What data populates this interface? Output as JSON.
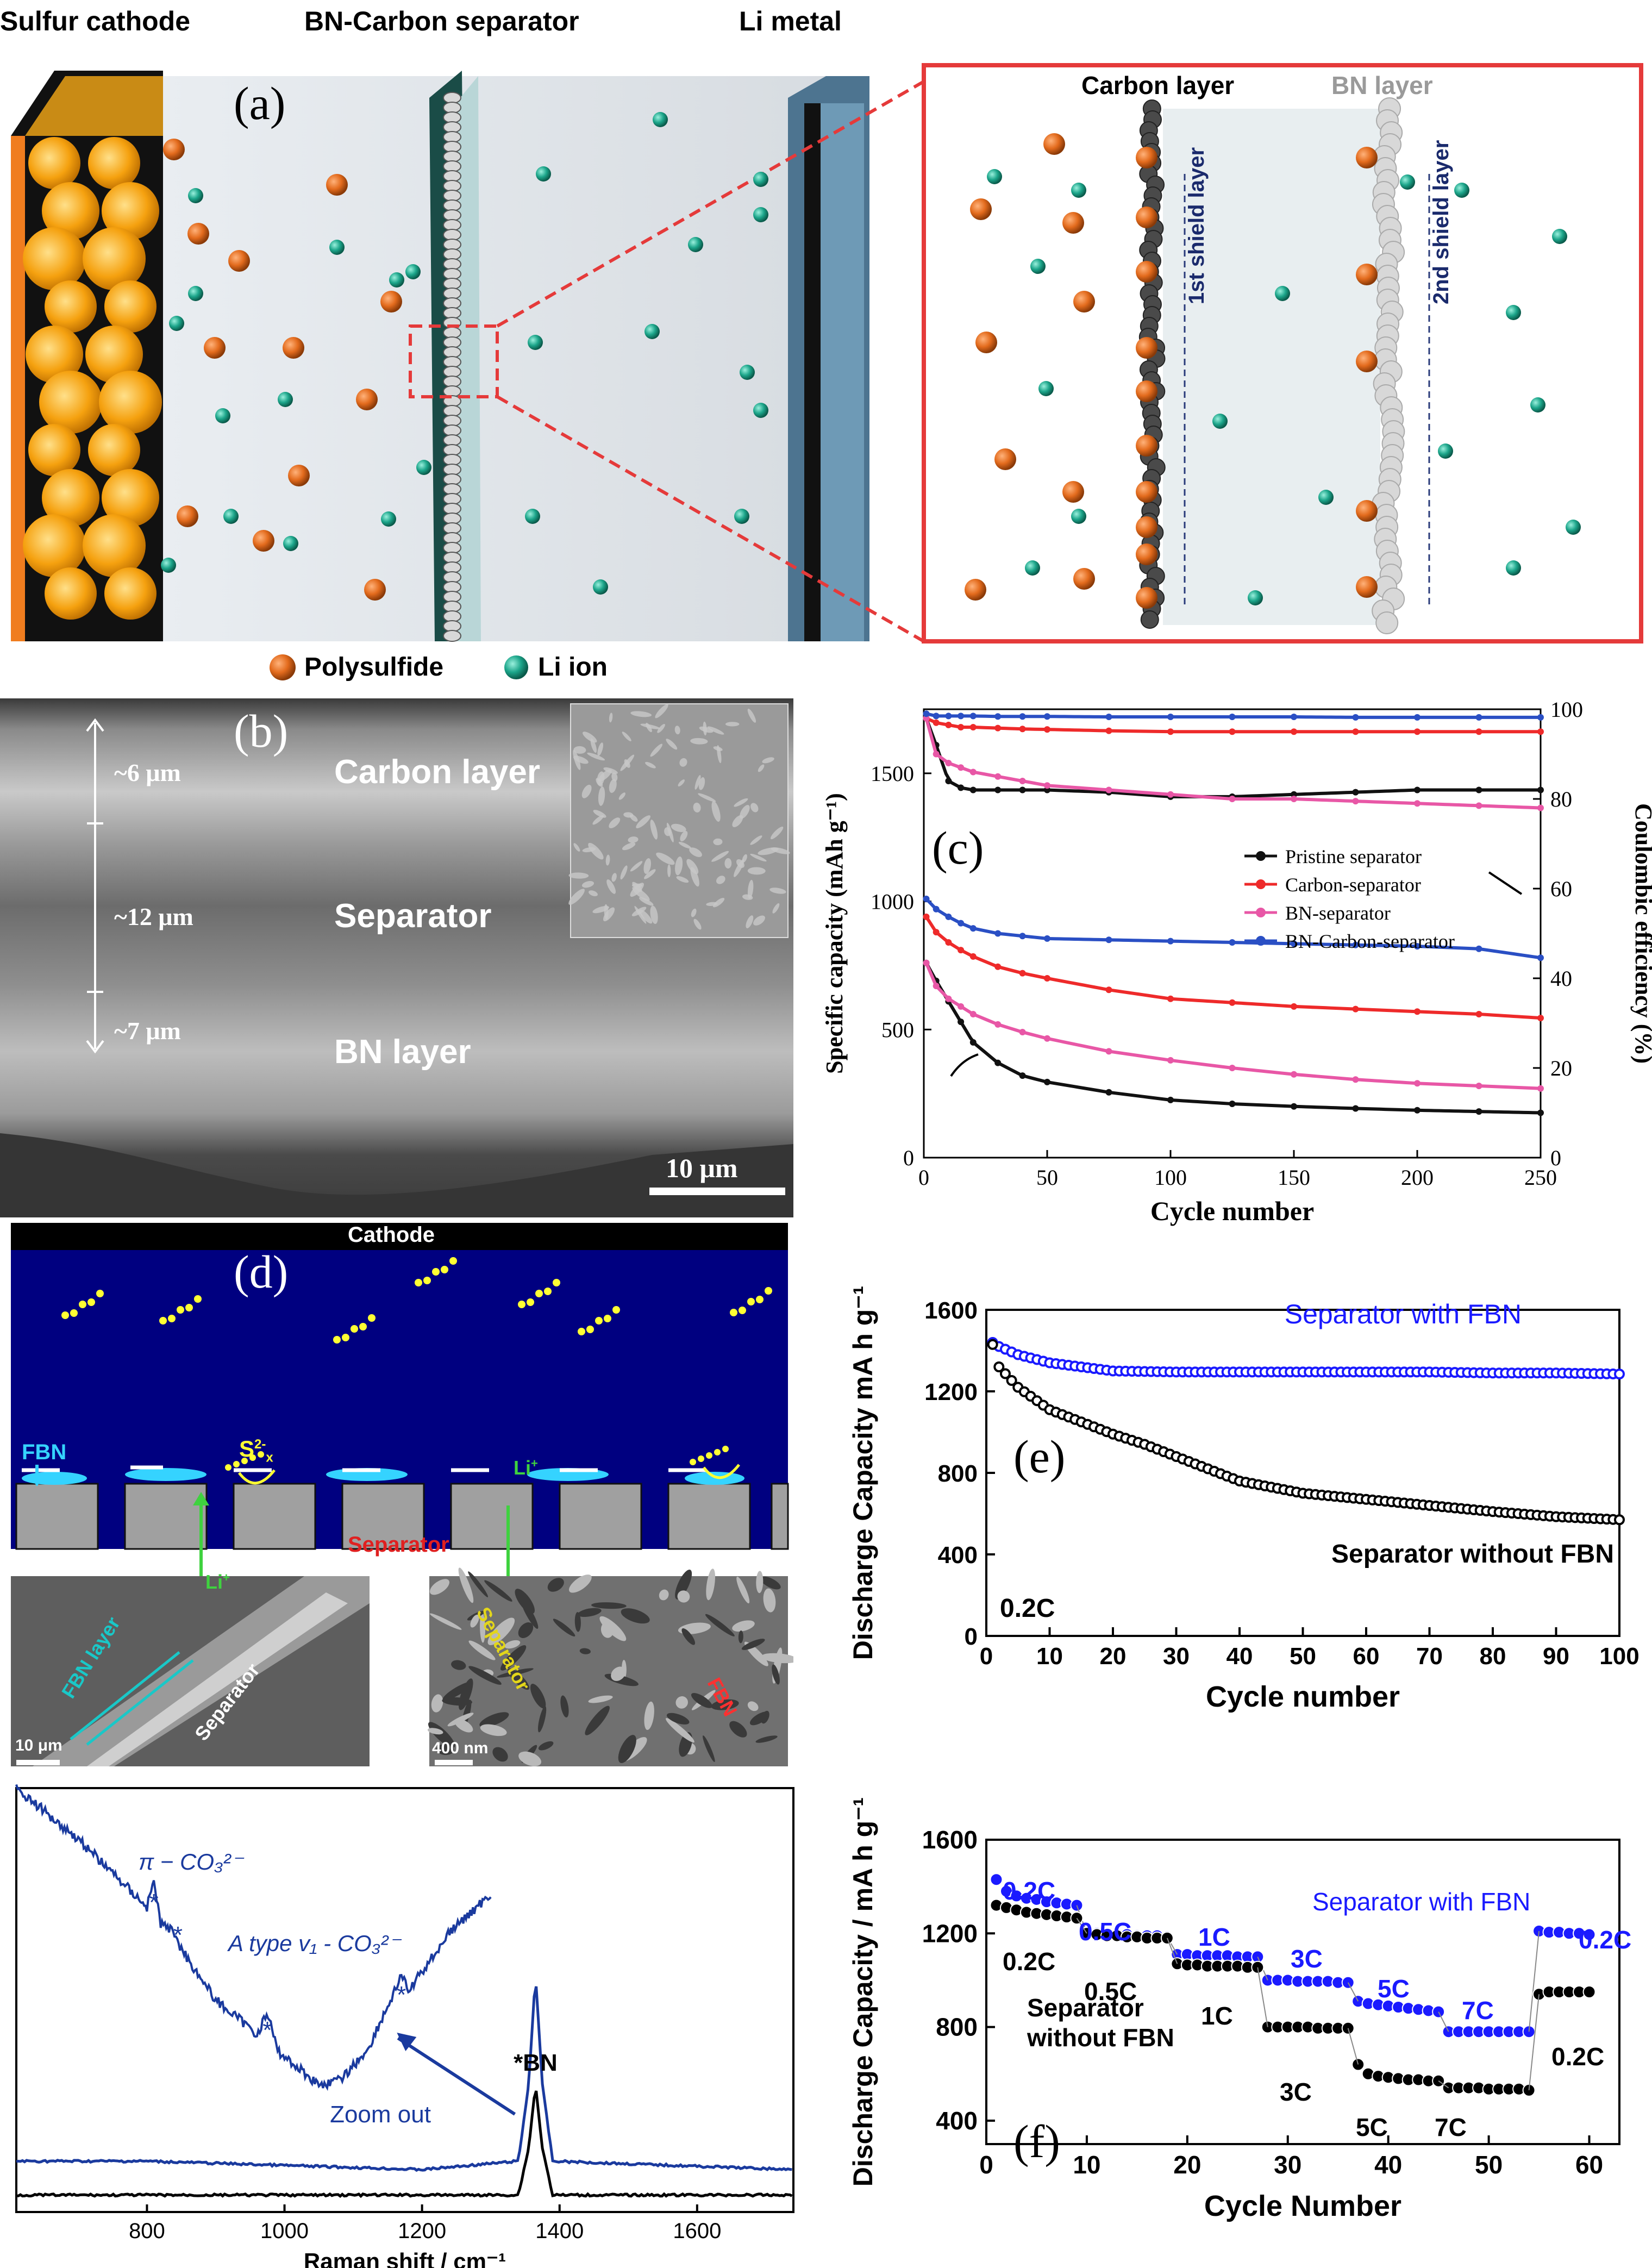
{
  "panel_a": {
    "label": "(a)",
    "header_left": "Sulfur cathode",
    "header_mid": "BN-Carbon separator",
    "header_right": "Li metal",
    "zoom_carbon": "Carbon layer",
    "zoom_bn": "BN layer",
    "shield1": "1st shield layer",
    "shield2": "2nd shield layer",
    "legend_polysulfide": "Polysulfide",
    "legend_li": "Li ion",
    "colors": {
      "polysulfide": "#e36b1d",
      "li_ion": "#1ca58a",
      "frame": "#e53a3a",
      "electrolyte": "#e4e8ec",
      "cathode": "#f39c12"
    }
  },
  "panel_b": {
    "label": "(b)",
    "carbon_layer": "Carbon layer",
    "separator": "Separator",
    "bn_layer": "BN layer",
    "thick_top": "~6 μm",
    "thick_mid": "~12 μm",
    "thick_bot": "~7 μm",
    "scalebar": "10 μm"
  },
  "panel_d": {
    "label": "(d)",
    "cathode": "Cathode",
    "fbn": "FBN",
    "s2": "S",
    "s2_sup": "2-",
    "s2_sub": "x",
    "li_plus": "Li",
    "li_plus_sup": "+",
    "separator": "Separator",
    "sem_left_fbn": "FBN layer",
    "sem_left_sep": "Separator",
    "sem_left_scale": "10 μm",
    "sem_right_sep": "Separator",
    "sem_right_fbn": "FBN",
    "sem_right_scale": "400 nm"
  },
  "chart_data": [
    {
      "id": "c",
      "type": "line",
      "label": "(c)",
      "xlabel": "Cycle number",
      "ylabel": "Specific capacity (mAh g⁻¹)",
      "y2label": "Coulombic efficiency (%)",
      "xlim": [
        0,
        250
      ],
      "ylim": [
        0,
        1750
      ],
      "y2lim": [
        0,
        100
      ],
      "xticks": [
        0,
        50,
        100,
        150,
        200,
        250
      ],
      "yticks": [
        0,
        500,
        1000,
        1500
      ],
      "y2ticks": [
        0,
        20,
        40,
        60,
        80,
        100
      ],
      "legend": [
        "Pristine separator",
        "Carbon-separator",
        "BN-separator",
        "BN-Carbon-separator"
      ],
      "colors": [
        "#111111",
        "#ee2a2a",
        "#e857a6",
        "#2a4fc4"
      ],
      "x": [
        1,
        5,
        10,
        15,
        20,
        30,
        40,
        50,
        75,
        100,
        125,
        150,
        175,
        200,
        225,
        250
      ],
      "series_capacity": [
        {
          "name": "Pristine separator",
          "values": [
            760,
            690,
            610,
            530,
            450,
            370,
            320,
            295,
            255,
            225,
            210,
            200,
            192,
            185,
            180,
            175
          ]
        },
        {
          "name": "Carbon-separator",
          "values": [
            940,
            880,
            840,
            810,
            785,
            745,
            720,
            700,
            655,
            620,
            605,
            590,
            580,
            570,
            560,
            545
          ]
        },
        {
          "name": "BN-separator",
          "values": [
            760,
            670,
            620,
            590,
            560,
            520,
            490,
            465,
            415,
            380,
            350,
            325,
            305,
            290,
            280,
            270
          ]
        },
        {
          "name": "BN-Carbon-separator",
          "values": [
            1010,
            970,
            940,
            915,
            895,
            875,
            865,
            855,
            850,
            845,
            840,
            835,
            830,
            825,
            815,
            780
          ]
        }
      ],
      "series_efficiency": [
        {
          "name": "Pristine separator",
          "values": [
            98,
            92,
            84,
            82.5,
            82,
            82,
            82,
            82,
            81.5,
            80.5,
            80.5,
            81,
            81.5,
            82,
            82,
            82
          ]
        },
        {
          "name": "Carbon-separator",
          "values": [
            98,
            97,
            96.5,
            96,
            96,
            95.8,
            95.6,
            95.5,
            95.2,
            95,
            95,
            95,
            95,
            95,
            95,
            95
          ]
        },
        {
          "name": "BN-separator",
          "values": [
            98,
            90,
            88,
            87,
            86,
            85,
            84,
            83,
            82,
            81,
            80,
            80,
            79.5,
            79,
            78.5,
            78
          ]
        },
        {
          "name": "BN-Carbon-separator",
          "values": [
            99,
            98.5,
            98.5,
            98.5,
            98.5,
            98.4,
            98.4,
            98.4,
            98.3,
            98.3,
            98.3,
            98.3,
            98.2,
            98.2,
            98.2,
            98.2
          ]
        }
      ]
    },
    {
      "id": "e",
      "type": "scatter",
      "label": "(e)",
      "xlabel": "Cycle number",
      "ylabel": "Discharge Capacity mA h g⁻¹",
      "xlim": [
        0,
        100
      ],
      "ylim": [
        0,
        1600
      ],
      "xticks": [
        0,
        10,
        20,
        30,
        40,
        50,
        60,
        70,
        80,
        90,
        100
      ],
      "yticks": [
        0,
        400,
        800,
        1200,
        1600
      ],
      "annotation": "0.2C",
      "series": [
        {
          "name": "Separator with FBN",
          "color": "#1a1aff",
          "x": [
            1,
            2,
            5,
            10,
            15,
            20,
            30,
            40,
            50,
            60,
            70,
            80,
            90,
            100
          ],
          "values": [
            1440,
            1420,
            1380,
            1340,
            1320,
            1300,
            1295,
            1295,
            1295,
            1295,
            1295,
            1290,
            1290,
            1285
          ]
        },
        {
          "name": "Separator without FBN",
          "color": "#000000",
          "x": [
            1,
            2,
            5,
            10,
            15,
            20,
            25,
            30,
            35,
            40,
            50,
            60,
            70,
            80,
            90,
            100
          ],
          "values": [
            1430,
            1320,
            1220,
            1110,
            1050,
            990,
            940,
            880,
            820,
            760,
            700,
            670,
            640,
            610,
            585,
            570
          ]
        }
      ]
    },
    {
      "id": "raman",
      "type": "line",
      "xlabel": "Raman shift / cm⁻¹",
      "xlim": [
        610,
        1740
      ],
      "xticks": [
        800,
        1000,
        1200,
        1400,
        1600
      ],
      "peak_label": "*BN",
      "zoom_label": "Zoom out",
      "pi_label": "π − CO₃²⁻",
      "atype_label": "A type v₁ - CO₃²⁻",
      "stars": [
        "*",
        "*",
        "*",
        "*"
      ],
      "series": [
        {
          "name": "Blue",
          "color": "#1a3a9e",
          "x": [
            610,
            800,
            1000,
            1200,
            1340,
            1355,
            1365,
            1375,
            1390,
            1740
          ],
          "values": [
            0.12,
            0.12,
            0.11,
            0.1,
            0.12,
            0.3,
            0.56,
            0.3,
            0.12,
            0.1
          ]
        },
        {
          "name": "Black",
          "color": "#000000",
          "x": [
            610,
            1000,
            1340,
            1355,
            1365,
            1375,
            1390,
            1740
          ],
          "values": [
            0.04,
            0.04,
            0.04,
            0.15,
            0.3,
            0.15,
            0.04,
            0.04
          ]
        }
      ],
      "inset": {
        "x": [
          610,
          700,
          800,
          810,
          820,
          840,
          850,
          900,
          960,
          975,
          990,
          1050,
          1080,
          1120,
          1160,
          1170,
          1180,
          1240,
          1300
        ],
        "values": [
          1.0,
          0.88,
          0.72,
          0.78,
          0.68,
          0.66,
          0.62,
          0.5,
          0.42,
          0.47,
          0.38,
          0.3,
          0.31,
          0.38,
          0.52,
          0.56,
          0.52,
          0.66,
          0.75
        ]
      }
    },
    {
      "id": "f",
      "type": "scatter",
      "label": "(f)",
      "xlabel": "Cycle Number",
      "ylabel": "Discharge Capacity / mA h g⁻¹",
      "xlim": [
        0,
        63
      ],
      "ylim": [
        300,
        1600
      ],
      "xticks": [
        0,
        10,
        20,
        30,
        40,
        50,
        60
      ],
      "yticks": [
        400,
        800,
        1200,
        1600
      ],
      "rates": [
        "0.2C",
        "0.5C",
        "1C",
        "3C",
        "5C",
        "7C",
        "0.2C"
      ],
      "legend_with": "Separator with FBN",
      "legend_without": "Separator without FBN",
      "series": [
        {
          "name": "Separator with FBN",
          "color": "#1a1aff",
          "groups": [
            {
              "x0": 1,
              "n": 9,
              "values": [
                1430,
                1380,
                1360,
                1350,
                1345,
                1335,
                1330,
                1325,
                1320
              ]
            },
            {
              "x0": 10,
              "n": 9,
              "values": [
                1200,
                1200,
                1195,
                1195,
                1195,
                1190,
                1190,
                1190,
                1185
              ]
            },
            {
              "x0": 19,
              "n": 9,
              "values": [
                1110,
                1110,
                1105,
                1105,
                1105,
                1105,
                1100,
                1100,
                1100
              ]
            },
            {
              "x0": 28,
              "n": 9,
              "values": [
                1000,
                1000,
                1000,
                995,
                995,
                995,
                995,
                990,
                990
              ]
            },
            {
              "x0": 37,
              "n": 9,
              "values": [
                910,
                900,
                895,
                890,
                885,
                880,
                875,
                870,
                865
              ]
            },
            {
              "x0": 46,
              "n": 9,
              "values": [
                780,
                780,
                780,
                780,
                780,
                780,
                780,
                780,
                780
              ]
            },
            {
              "x0": 55,
              "n": 6,
              "values": [
                1210,
                1205,
                1205,
                1200,
                1200,
                1195
              ]
            }
          ]
        },
        {
          "name": "Separator without FBN",
          "color": "#000000",
          "groups": [
            {
              "x0": 1,
              "n": 9,
              "values": [
                1320,
                1310,
                1300,
                1290,
                1285,
                1280,
                1275,
                1270,
                1265
              ]
            },
            {
              "x0": 10,
              "n": 9,
              "values": [
                1200,
                1195,
                1190,
                1190,
                1185,
                1185,
                1180,
                1180,
                1180
              ]
            },
            {
              "x0": 19,
              "n": 9,
              "values": [
                1070,
                1065,
                1065,
                1060,
                1060,
                1060,
                1060,
                1055,
                1055
              ]
            },
            {
              "x0": 28,
              "n": 9,
              "values": [
                800,
                800,
                800,
                800,
                800,
                795,
                795,
                795,
                795
              ]
            },
            {
              "x0": 37,
              "n": 9,
              "values": [
                640,
                600,
                590,
                585,
                580,
                575,
                575,
                570,
                570
              ]
            },
            {
              "x0": 46,
              "n": 9,
              "values": [
                540,
                540,
                540,
                540,
                535,
                535,
                535,
                535,
                530
              ]
            },
            {
              "x0": 55,
              "n": 6,
              "values": [
                940,
                950,
                950,
                950,
                950,
                950
              ]
            }
          ]
        }
      ]
    }
  ]
}
